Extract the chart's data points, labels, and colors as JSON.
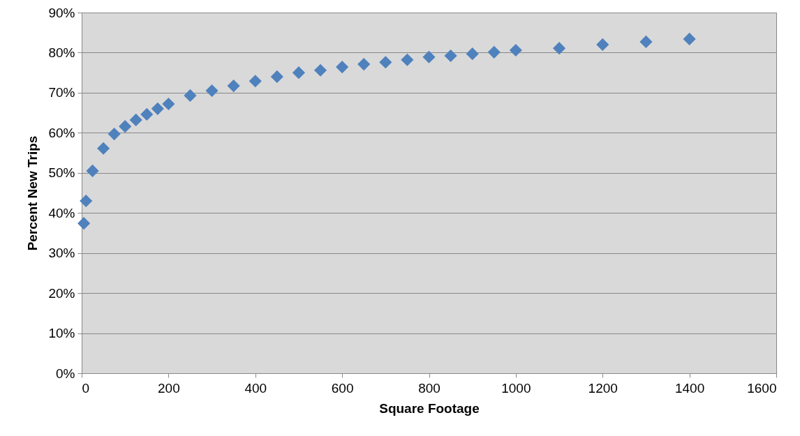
{
  "chart_data": {
    "type": "scatter",
    "xlabel": "Square Footage",
    "ylabel": "Percent New Trips",
    "x": [
      5,
      10,
      25,
      50,
      75,
      100,
      125,
      150,
      175,
      200,
      250,
      300,
      350,
      400,
      450,
      500,
      550,
      600,
      650,
      700,
      750,
      800,
      850,
      900,
      950,
      1000,
      1100,
      1200,
      1300,
      1400
    ],
    "series": [
      {
        "color": "#4f81bd",
        "values": [
          37.4,
          43.0,
          50.5,
          56.1,
          59.7,
          61.6,
          63.2,
          64.6,
          66.0,
          67.2,
          69.3,
          70.5,
          71.7,
          72.9,
          74.0,
          75.0,
          75.6,
          76.4,
          77.1,
          77.6,
          78.2,
          78.9,
          79.2,
          79.7,
          80.1,
          80.6,
          81.1,
          82.0,
          82.7,
          83.4
        ]
      }
    ],
    "xlim": [
      0,
      1600
    ],
    "xticks": [
      0,
      200,
      400,
      600,
      800,
      1000,
      1200,
      1400,
      1600
    ],
    "ylim": [
      0,
      90
    ],
    "yticks": [
      {
        "value": 0,
        "label": "0%"
      },
      {
        "value": 10,
        "label": "10%"
      },
      {
        "value": 20,
        "label": "20%"
      },
      {
        "value": 30,
        "label": "30%"
      },
      {
        "value": 40,
        "label": "40%"
      },
      {
        "value": 50,
        "label": "50%"
      },
      {
        "value": 60,
        "label": "60%"
      },
      {
        "value": 70,
        "label": "70%"
      },
      {
        "value": 80,
        "label": "80%"
      },
      {
        "value": 90,
        "label": "90%"
      }
    ],
    "grid": "y",
    "marker": "diamond"
  }
}
